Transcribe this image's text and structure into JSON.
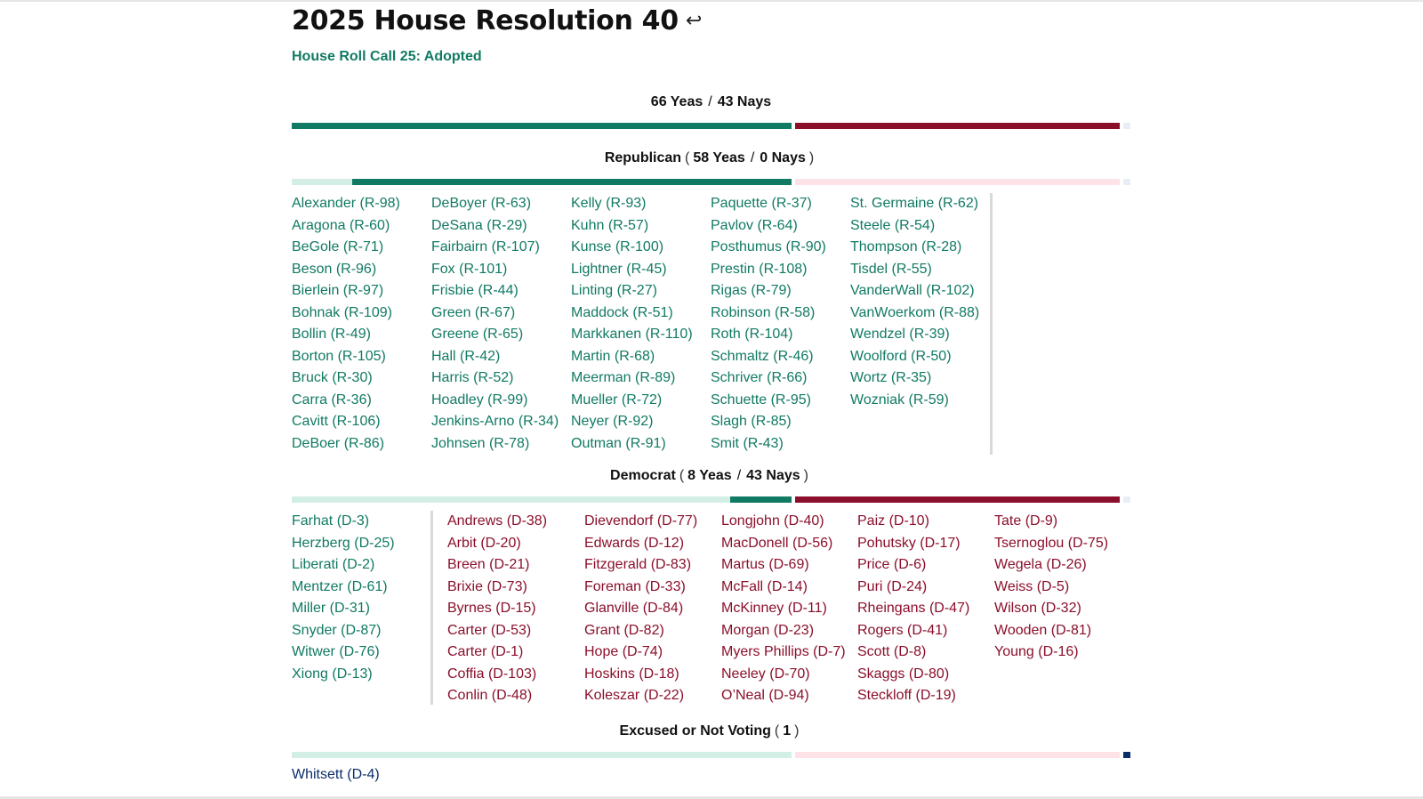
{
  "title": "2025 House Resolution 40",
  "return_icon": "↩",
  "subtitle": "House Roll Call 25: Adopted",
  "colors": {
    "yea": "#117a63",
    "nay": "#8b0f2b",
    "not_voting": "#0b2e6b"
  },
  "overall": {
    "yeas_label": "66 Yeas",
    "nays_label": "43 Nays",
    "yeas": 66,
    "nays": 43,
    "not_voting": 1
  },
  "republican": {
    "party": "Republican",
    "yeas_label": "58 Yeas",
    "nays_label": "0 Nays",
    "yeas": 58,
    "nays": 0,
    "yeas_members": [
      [
        "Alexander (R-98)",
        "Aragona (R-60)",
        "BeGole (R-71)",
        "Beson (R-96)",
        "Bierlein (R-97)",
        "Bohnak (R-109)",
        "Bollin (R-49)",
        "Borton (R-105)",
        "Bruck (R-30)",
        "Carra (R-36)",
        "Cavitt (R-106)",
        "DeBoer (R-86)"
      ],
      [
        "DeBoyer (R-63)",
        "DeSana (R-29)",
        "Fairbairn (R-107)",
        "Fox (R-101)",
        "Frisbie (R-44)",
        "Green (R-67)",
        "Greene (R-65)",
        "Hall (R-42)",
        "Harris (R-52)",
        "Hoadley (R-99)",
        "Jenkins-Arno (R-34)",
        "Johnsen (R-78)"
      ],
      [
        "Kelly (R-93)",
        "Kuhn (R-57)",
        "Kunse (R-100)",
        "Lightner (R-45)",
        "Linting (R-27)",
        "Maddock (R-51)",
        "Markkanen (R-110)",
        "Martin (R-68)",
        "Meerman (R-89)",
        "Mueller (R-72)",
        "Neyer (R-92)",
        "Outman (R-91)"
      ],
      [
        "Paquette (R-37)",
        "Pavlov (R-64)",
        "Posthumus (R-90)",
        "Prestin (R-108)",
        "Rigas (R-79)",
        "Robinson (R-58)",
        "Roth (R-104)",
        "Schmaltz (R-46)",
        "Schriver (R-66)",
        "Schuette (R-95)",
        "Slagh (R-85)",
        "Smit (R-43)"
      ],
      [
        "St. Germaine (R-62)",
        "Steele (R-54)",
        "Thompson (R-28)",
        "Tisdel (R-55)",
        "VanderWall (R-102)",
        "VanWoerkom (R-88)",
        "Wendzel (R-39)",
        "Woolford (R-50)",
        "Wortz (R-35)",
        "Wozniak (R-59)"
      ]
    ]
  },
  "democrat": {
    "party": "Democrat",
    "yeas_label": "8 Yeas",
    "nays_label": "43 Nays",
    "yeas": 8,
    "nays": 43,
    "yeas_members": [
      "Farhat (D-3)",
      "Herzberg (D-25)",
      "Liberati (D-2)",
      "Mentzer (D-61)",
      "Miller (D-31)",
      "Snyder (D-87)",
      "Witwer (D-76)",
      "Xiong (D-13)"
    ],
    "nays_members": [
      [
        "Andrews (D-38)",
        "Arbit (D-20)",
        "Breen (D-21)",
        "Brixie (D-73)",
        "Byrnes (D-15)",
        "Carter (D-53)",
        "Carter (D-1)",
        "Coffia (D-103)",
        "Conlin (D-48)"
      ],
      [
        "Dievendorf (D-77)",
        "Edwards (D-12)",
        "Fitzgerald (D-83)",
        "Foreman (D-33)",
        "Glanville (D-84)",
        "Grant (D-82)",
        "Hope (D-74)",
        "Hoskins (D-18)",
        "Koleszar (D-22)"
      ],
      [
        "Longjohn (D-40)",
        "MacDonell (D-56)",
        "Martus (D-69)",
        "McFall (D-14)",
        "McKinney (D-11)",
        "Morgan (D-23)",
        "Myers Phillips (D-7)",
        "Neeley (D-70)",
        "O’Neal (D-94)"
      ],
      [
        "Paiz (D-10)",
        "Pohutsky (D-17)",
        "Price (D-6)",
        "Puri (D-24)",
        "Rheingans (D-47)",
        "Rogers (D-41)",
        "Scott (D-8)",
        "Skaggs (D-80)",
        "Steckloff (D-19)"
      ],
      [
        "Tate (D-9)",
        "Tsernoglou (D-75)",
        "Wegela (D-26)",
        "Weiss (D-5)",
        "Wilson (D-32)",
        "Wooden (D-81)",
        "Young (D-16)"
      ]
    ]
  },
  "excused": {
    "label": "Excused or Not Voting",
    "count_label": "1",
    "count": 1,
    "members": [
      "Whitsett (D-4)"
    ]
  }
}
